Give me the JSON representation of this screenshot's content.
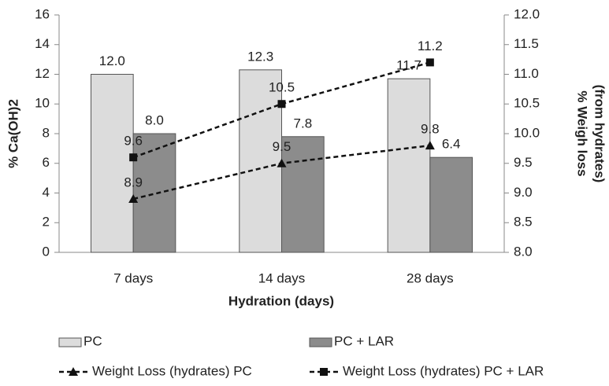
{
  "chart_data": {
    "type": "bar",
    "categories": [
      "7 days",
      "14 days",
      "28 days"
    ],
    "x_label": "Hydration (days)",
    "y_label": "% Ca(OH)2",
    "y2_label": [
      "% Weigh loss",
      "(from hydrates)"
    ],
    "ylim": [
      0,
      16
    ],
    "yticks": [
      0,
      2,
      4,
      6,
      8,
      10,
      12,
      14,
      16
    ],
    "y2lim": [
      8,
      12
    ],
    "y2ticks": [
      {
        "value": 8,
        "label": "8.0"
      },
      8.5,
      {
        "value": 9,
        "label": "9.0"
      },
      9.5,
      {
        "value": 10,
        "label": "10.0"
      },
      10.5,
      {
        "value": 11,
        "label": "11.0"
      },
      11.5,
      {
        "value": 12,
        "label": "12.0"
      }
    ],
    "series": [
      {
        "name": "PC",
        "type": "bar",
        "color": "#dcdcdc",
        "values": [
          12.0,
          12.3,
          11.7
        ],
        "value_labels": [
          "12.0",
          "12.3",
          "11.7"
        ]
      },
      {
        "name": "PC + LAR",
        "type": "bar",
        "color": "#8c8c8c",
        "values": [
          8.0,
          7.8,
          6.4
        ],
        "value_labels": [
          "8.0",
          "7.8",
          "6.4"
        ]
      },
      {
        "name": "Weight Loss (hydrates) PC",
        "type": "line",
        "axis": "y2",
        "marker": "triangle",
        "color": "#111111",
        "values": [
          8.9,
          9.5,
          9.8
        ],
        "value_labels": [
          "8.9",
          "9.5",
          "9.8"
        ]
      },
      {
        "name": "Weight Loss (hydrates) PC + LAR",
        "type": "line",
        "axis": "y2",
        "marker": "square",
        "color": "#111111",
        "values": [
          9.6,
          10.5,
          11.2
        ],
        "value_labels": [
          "9.6",
          "10.5",
          "11.2"
        ]
      }
    ]
  }
}
